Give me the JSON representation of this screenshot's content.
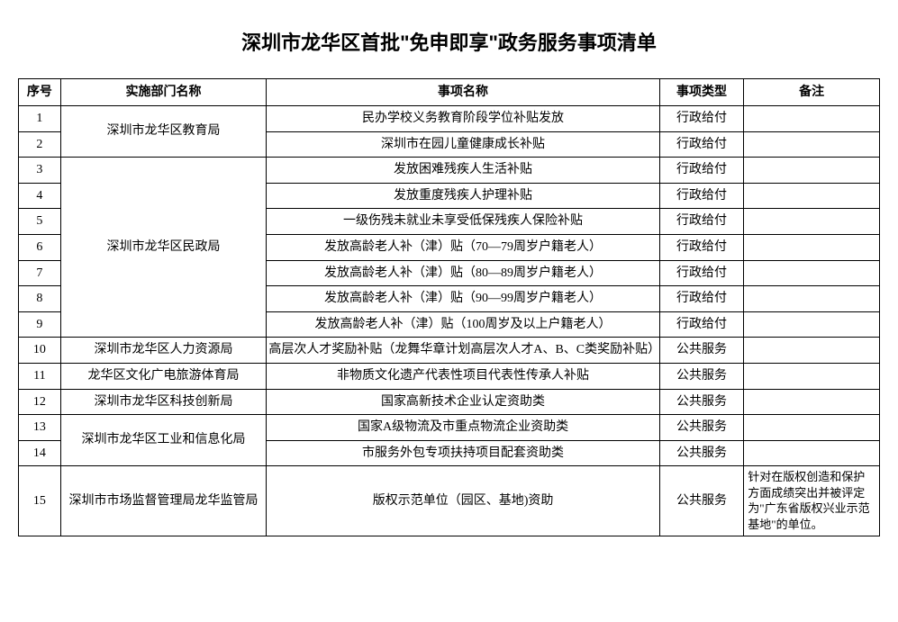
{
  "title": "深圳市龙华区首批\"免申即享\"政务服务事项清单",
  "headers": {
    "seq": "序号",
    "dept": "实施部门名称",
    "item": "事项名称",
    "type": "事项类型",
    "remark": "备注"
  },
  "rows": [
    {
      "seq": "1",
      "dept": "深圳市龙华区教育局",
      "deptRowspan": 2,
      "item": "民办学校义务教育阶段学位补贴发放",
      "type": "行政给付",
      "remark": ""
    },
    {
      "seq": "2",
      "item": "深圳市在园儿童健康成长补贴",
      "type": "行政给付",
      "remark": ""
    },
    {
      "seq": "3",
      "dept": "深圳市龙华区民政局",
      "deptRowspan": 7,
      "item": "发放困难残疾人生活补贴",
      "type": "行政给付",
      "remark": ""
    },
    {
      "seq": "4",
      "item": "发放重度残疾人护理补贴",
      "type": "行政给付",
      "remark": ""
    },
    {
      "seq": "5",
      "item": "一级伤残未就业未享受低保残疾人保险补贴",
      "type": "行政给付",
      "remark": ""
    },
    {
      "seq": "6",
      "item": "发放高龄老人补（津）贴（70—79周岁户籍老人）",
      "type": "行政给付",
      "remark": ""
    },
    {
      "seq": "7",
      "item": "发放高龄老人补（津）贴（80—89周岁户籍老人）",
      "type": "行政给付",
      "remark": ""
    },
    {
      "seq": "8",
      "item": "发放高龄老人补（津）贴（90—99周岁户籍老人）",
      "type": "行政给付",
      "remark": ""
    },
    {
      "seq": "9",
      "item": "发放高龄老人补（津）贴（100周岁及以上户籍老人）",
      "type": "行政给付",
      "remark": ""
    },
    {
      "seq": "10",
      "dept": "深圳市龙华区人力资源局",
      "deptRowspan": 1,
      "item": "高层次人才奖励补贴（龙舞华章计划高层次人才A、B、C类奖励补贴）",
      "type": "公共服务",
      "remark": ""
    },
    {
      "seq": "11",
      "dept": "龙华区文化广电旅游体育局",
      "deptRowspan": 1,
      "item": "非物质文化遗产代表性项目代表性传承人补贴",
      "type": "公共服务",
      "remark": ""
    },
    {
      "seq": "12",
      "dept": "深圳市龙华区科技创新局",
      "deptRowspan": 1,
      "item": "国家高新技术企业认定资助类",
      "type": "公共服务",
      "remark": ""
    },
    {
      "seq": "13",
      "dept": "深圳市龙华区工业和信息化局",
      "deptRowspan": 2,
      "item": "国家A级物流及市重点物流企业资助类",
      "type": "公共服务",
      "remark": ""
    },
    {
      "seq": "14",
      "item": "市服务外包专项扶持项目配套资助类",
      "type": "公共服务",
      "remark": ""
    },
    {
      "seq": "15",
      "dept": "深圳市市场监督管理局龙华监管局",
      "deptRowspan": 1,
      "item": "版权示范单位（园区、基地)资助",
      "type": "公共服务",
      "remark": "针对在版权创造和保护方面成绩突出并被评定为\"广东省版权兴业示范基地\"的单位。"
    }
  ],
  "styles": {
    "title_fontsize": 22,
    "cell_fontsize": 14,
    "border_color": "#000000",
    "background_color": "#ffffff",
    "text_color": "#000000",
    "col_widths": {
      "seq": 45,
      "dept": 220,
      "item": 420,
      "type": 90,
      "remark": 145
    }
  }
}
